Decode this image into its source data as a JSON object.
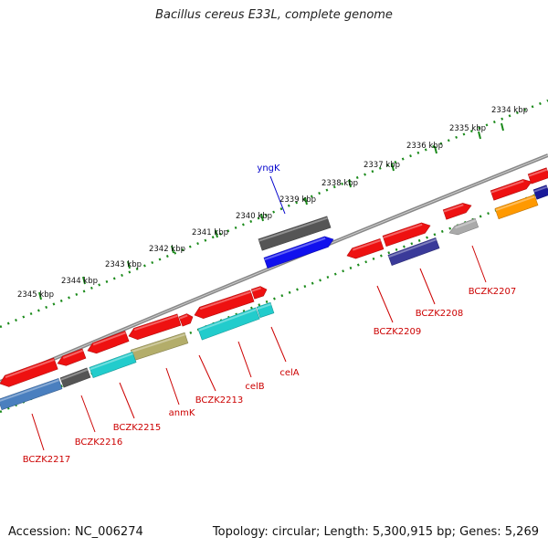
{
  "title": "Bacillus cereus E33L, complete genome",
  "footer": {
    "accession": "Accession: NC_006274",
    "summary": "Topology: circular; Length: 5,300,915 bp; Genes: 5,269"
  },
  "scale_labels": [
    "2334 kbp",
    "2335 kbp",
    "2336 kbp",
    "2337 kbp",
    "2338 kbp",
    "2339 kbp",
    "2340 kbp",
    "2341 kbp",
    "2342 kbp",
    "2343 kbp",
    "2344 kbp",
    "2345 kbp"
  ],
  "gene_labels": [
    {
      "id": "yngK",
      "text": "yngK",
      "color": "#0000cc"
    },
    {
      "id": "BCZK2207",
      "text": "BCZK2207",
      "color": "#cc0000"
    },
    {
      "id": "BCZK2208",
      "text": "BCZK2208",
      "color": "#cc0000"
    },
    {
      "id": "BCZK2209",
      "text": "BCZK2209",
      "color": "#cc0000"
    },
    {
      "id": "celA",
      "text": "celA",
      "color": "#cc0000"
    },
    {
      "id": "celB",
      "text": "celB",
      "color": "#cc0000"
    },
    {
      "id": "BCZK2213",
      "text": "BCZK2213",
      "color": "#cc0000"
    },
    {
      "id": "anmK",
      "text": "anmK",
      "color": "#cc0000"
    },
    {
      "id": "BCZK2215",
      "text": "BCZK2215",
      "color": "#cc0000"
    },
    {
      "id": "BCZK2216",
      "text": "BCZK2216",
      "color": "#cc0000"
    },
    {
      "id": "BCZK2217",
      "text": "BCZK2217",
      "color": "#cc0000"
    }
  ],
  "colors": {
    "backbone": "#888888",
    "ticks": "#1a8a1a",
    "cds": "#ee1111",
    "blue": "#1111ee",
    "cyan": "#22cccc",
    "darkgray": "#555555",
    "olive": "#b3ad6a",
    "steelblue": "#4a7fbf",
    "slateblue": "#3a3a99",
    "orange": "#ff9900",
    "navy": "#1a1a99",
    "lightgray": "#aaaaaa"
  }
}
